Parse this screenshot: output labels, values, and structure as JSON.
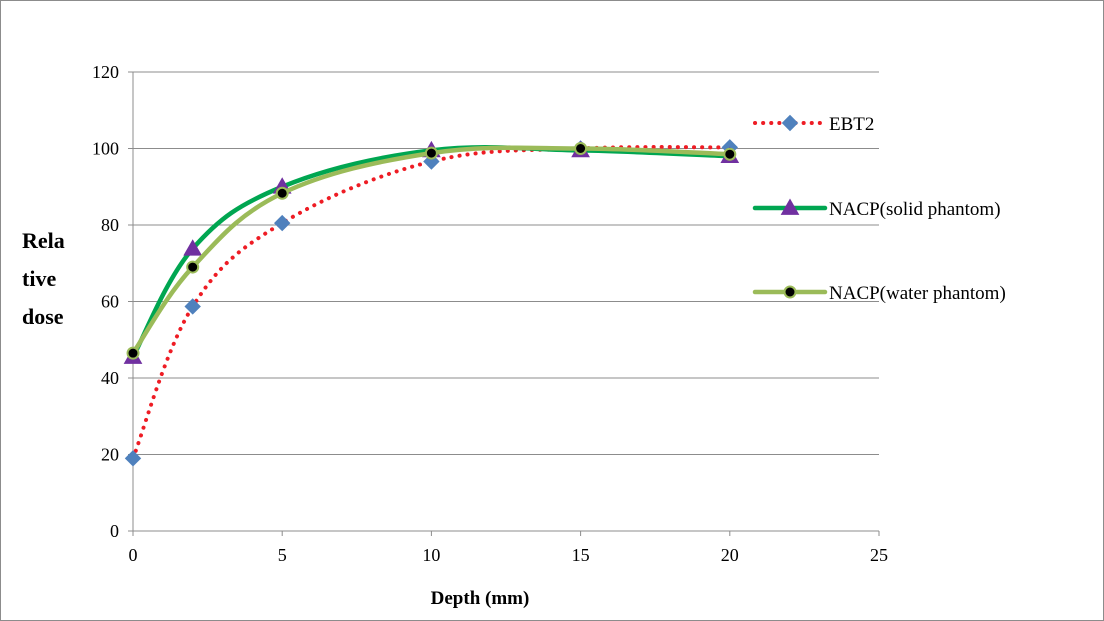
{
  "chart_data": {
    "type": "line",
    "title": "",
    "xlabel": "Depth (mm)",
    "ylabel": "Relative dose",
    "xlim": [
      0,
      25
    ],
    "ylim": [
      0,
      120
    ],
    "x_ticks": [
      "0",
      "5",
      "10",
      "15",
      "20",
      "25"
    ],
    "y_ticks": [
      "0",
      "20",
      "40",
      "60",
      "80",
      "100",
      "120"
    ],
    "grid": "horizontal",
    "legend": "right",
    "series": [
      {
        "name": "EBT2",
        "x": [
          0,
          2,
          5,
          10,
          15,
          20
        ],
        "y": [
          19,
          58.7,
          80.5,
          96.6,
          100,
          100.3
        ],
        "color": "#ee1c24",
        "marker": "diamond",
        "marker_color": "#4f81bd",
        "line": "dotted"
      },
      {
        "name": "NACP(solid phantom)",
        "x": [
          0,
          2,
          5,
          10,
          15,
          20
        ],
        "y": [
          45.5,
          73.8,
          90,
          99.5,
          99.5,
          98
        ],
        "color": "#00a651",
        "marker": "triangle",
        "marker_color": "#7030a0",
        "line": "solid"
      },
      {
        "name": "NACP(water phantom)",
        "x": [
          0,
          2,
          5,
          10,
          15,
          20
        ],
        "y": [
          46.5,
          69,
          88.3,
          98.8,
          100,
          98.5
        ],
        "color": "#9bbb59",
        "marker": "circle",
        "marker_color": "#000000",
        "line": "solid"
      }
    ]
  }
}
